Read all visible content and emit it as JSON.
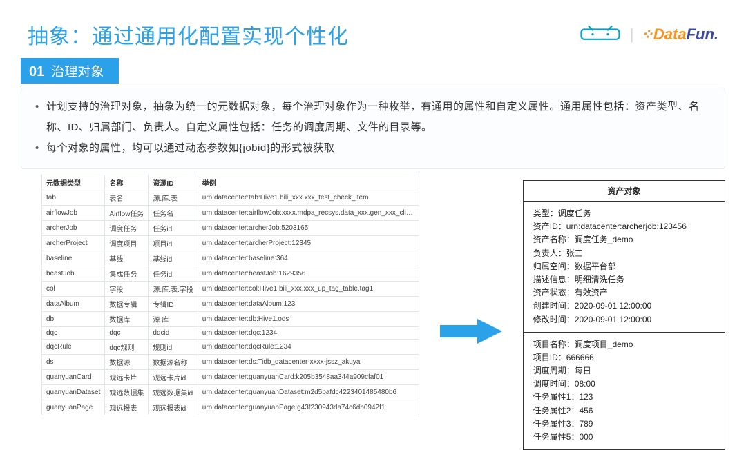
{
  "title": "抽象：通过通用化配置实现个性化",
  "logos": {
    "bilibili_color": "#00a1d6",
    "datafun_word1": "Data",
    "datafun_word2": "Fun.",
    "datafun_color1": "#f7931e",
    "datafun_color2": "#3a4a9f"
  },
  "section": {
    "num": "01",
    "label": "治理对象"
  },
  "bullets": [
    "计划支持的治理对象，抽象为统一的元数据对象，每个治理对象作为一种枚举，有通用的属性和自定义属性。通用属性包括：资产类型、名称、ID、归属部门、负责人。自定义属性包括：任务的调度周期、文件的目录等。",
    "每个对象的属性，均可以通过动态参数如{jobid}的形式被获取"
  ],
  "table": {
    "headers": [
      "元数据类型",
      "名称",
      "资源ID",
      "举例"
    ],
    "rows": [
      [
        "tab",
        "表名",
        "源.库.表",
        "urn:datacenter:tab:Hive1.bili_xxx.xxx_test_check_item"
      ],
      [
        "airflowJob",
        "Airflow任务",
        "任务名",
        "urn:datacenter:airflowJob:xxxx.mdpa_recsys.data_xxx.gen_xxx_click_daily"
      ],
      [
        "archerJob",
        "调度任务",
        "任务id",
        "urn:datacenter:archerJob:5203165"
      ],
      [
        "archerProject",
        "调度项目",
        "项目id",
        "urn:datacenter:archerProject:12345"
      ],
      [
        "baseline",
        "基线",
        "基线id",
        "urn:datacenter:baseline:364"
      ],
      [
        "beastJob",
        "集成任务",
        "任务id",
        "urn:datacenter:beastJob:1629356"
      ],
      [
        "col",
        "字段",
        "源.库.表.字段",
        "urn:datacenter:col:Hive1.bili_xxx.xxx_up_tag_table.tag1"
      ],
      [
        "dataAlbum",
        "数据专辑",
        "专辑ID",
        "urn:datacenter:dataAlbum:123"
      ],
      [
        "db",
        "数据库",
        "源.库",
        "urn:datacenter:db:Hive1.ods"
      ],
      [
        "dqc",
        "dqc",
        "dqcid",
        "urn:datacenter:dqc:1234"
      ],
      [
        "dqcRule",
        "dqc规则",
        "规则id",
        "urn:datacenter:dqcRule:1234"
      ],
      [
        "ds",
        "数据源",
        "数据源名称",
        "urn:datacenter:ds:Tidb_datacenter-xxxx-jssz_akuya"
      ],
      [
        "guanyuanCard",
        "观远卡片",
        "观远卡片id",
        "urn:datacenter:guanyuanCard:k205b3548aa344a909cfaf01"
      ],
      [
        "guanyuanDataset",
        "观远数据集",
        "观远数据集id",
        "urn:datacenter:guanyuanDataset:m2d5bafdc4223401485480b6"
      ],
      [
        "guanyuanPage",
        "观远报表",
        "观远报表id",
        "urn:datacenter:guanyuanPage:g43f230943da74c6db0942f1"
      ]
    ]
  },
  "arrow": {
    "fill": "#2aa1e8",
    "width": 90,
    "height": 36
  },
  "asset": {
    "title": "资产对象",
    "group1": [
      "类型：调度任务",
      "资产ID：urn:datacenter:archerjob:123456",
      "资产名称：调度任务_demo",
      "负责人：张三",
      "归属空间：数据平台部",
      "描述信息：明细清洗任务",
      "资产状态：有效资产",
      "创建时间：2020-09-01 12:00:00",
      "修改时间：2020-09-01 12:00:00"
    ],
    "group2": [
      "项目名称：调度项目_demo",
      "项目ID：666666",
      "调度周期：每日",
      "调度时间：08:00",
      "任务属性1：123",
      "任务属性2：456",
      "任务属性3：789",
      "任务属性5：000"
    ]
  }
}
